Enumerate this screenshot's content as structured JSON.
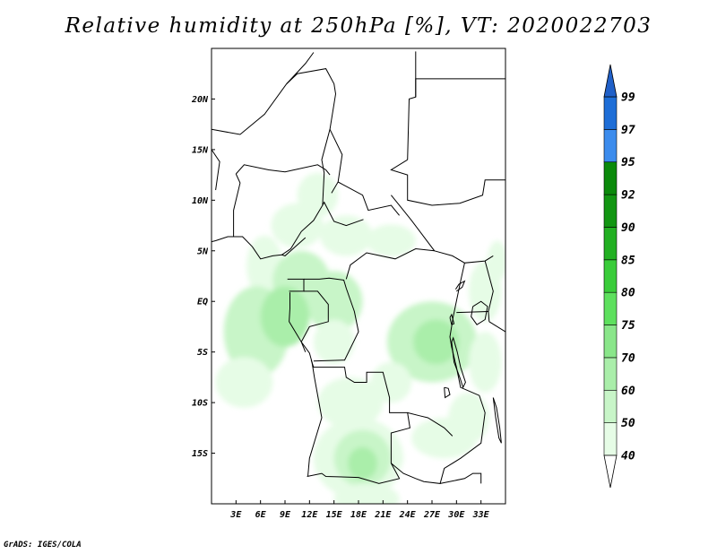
{
  "title": "Relative humidity at 250hPa [%], VT: 2020022703",
  "credit": "GrADS: IGES/COLA",
  "map": {
    "lon_range": [
      0,
      36
    ],
    "lat_range": [
      -20,
      25
    ],
    "lat_ticks": [
      {
        "value": 20,
        "label": "20N"
      },
      {
        "value": 15,
        "label": "15N"
      },
      {
        "value": 10,
        "label": "10N"
      },
      {
        "value": 5,
        "label": "5N"
      },
      {
        "value": 0,
        "label": "EQ"
      },
      {
        "value": -5,
        "label": "5S"
      },
      {
        "value": -10,
        "label": "10S"
      },
      {
        "value": -15,
        "label": "15S"
      }
    ],
    "lon_ticks": [
      {
        "value": 3,
        "label": "3E"
      },
      {
        "value": 6,
        "label": "6E"
      },
      {
        "value": 9,
        "label": "9E"
      },
      {
        "value": 12,
        "label": "12E"
      },
      {
        "value": 15,
        "label": "15E"
      },
      {
        "value": 18,
        "label": "18E"
      },
      {
        "value": 21,
        "label": "21E"
      },
      {
        "value": 24,
        "label": "24E"
      },
      {
        "value": 27,
        "label": "27E"
      },
      {
        "value": 30,
        "label": "30E"
      },
      {
        "value": 33,
        "label": "33E"
      }
    ],
    "humidity_field": [
      {
        "lon": 13,
        "lat": 10.5,
        "rx": 2.5,
        "ry": 2.2,
        "level": 50
      },
      {
        "lon": 10.5,
        "lat": 7.5,
        "rx": 3.2,
        "ry": 2.2,
        "level": 50
      },
      {
        "lon": 16.5,
        "lat": 6.5,
        "rx": 3.2,
        "ry": 2.0,
        "level": 50
      },
      {
        "lon": 22,
        "lat": 6,
        "rx": 3.0,
        "ry": 1.6,
        "level": 50
      },
      {
        "lon": 6.5,
        "lat": 3.5,
        "rx": 2.2,
        "ry": 3.0,
        "level": 50
      },
      {
        "lon": 11,
        "lat": 2,
        "rx": 3.5,
        "ry": 3.0,
        "level": 60
      },
      {
        "lon": 15,
        "lat": 0,
        "rx": 3.5,
        "ry": 3.0,
        "level": 60
      },
      {
        "lon": 5.5,
        "lat": -3,
        "rx": 4.0,
        "ry": 4.5,
        "level": 60
      },
      {
        "lon": 9,
        "lat": -1.5,
        "rx": 3.0,
        "ry": 3.0,
        "level": 70
      },
      {
        "lon": 4,
        "lat": -8,
        "rx": 3.5,
        "ry": 2.5,
        "level": 50
      },
      {
        "lon": 15,
        "lat": -4,
        "rx": 2.5,
        "ry": 2.2,
        "level": 50
      },
      {
        "lon": 27,
        "lat": -4,
        "rx": 5.5,
        "ry": 4.0,
        "level": 60
      },
      {
        "lon": 27.5,
        "lat": -4,
        "rx": 2.8,
        "ry": 2.2,
        "level": 70
      },
      {
        "lon": 22,
        "lat": -8,
        "rx": 2.5,
        "ry": 2.0,
        "level": 50
      },
      {
        "lon": 33.5,
        "lat": 1,
        "rx": 2.0,
        "ry": 3.0,
        "level": 50
      },
      {
        "lon": 33.5,
        "lat": -6,
        "rx": 2.0,
        "ry": 3.0,
        "level": 50
      },
      {
        "lon": 31.5,
        "lat": -11.5,
        "rx": 2.5,
        "ry": 2.5,
        "level": 50
      },
      {
        "lon": 28.5,
        "lat": -13.5,
        "rx": 4.0,
        "ry": 2.0,
        "level": 50
      },
      {
        "lon": 17,
        "lat": -10,
        "rx": 4.0,
        "ry": 2.5,
        "level": 50
      },
      {
        "lon": 18,
        "lat": -15.5,
        "rx": 5.5,
        "ry": 4.0,
        "level": 50
      },
      {
        "lon": 18.5,
        "lat": -15.5,
        "rx": 3.5,
        "ry": 2.8,
        "level": 60
      },
      {
        "lon": 18.5,
        "lat": -16,
        "rx": 1.8,
        "ry": 1.6,
        "level": 70
      },
      {
        "lon": 19,
        "lat": -19.5,
        "rx": 4.0,
        "ry": 1.5,
        "level": 50
      },
      {
        "lon": 2.5,
        "lat": -15,
        "rx": 0.8,
        "ry": 0.6,
        "level": 40
      },
      {
        "lon": 3.5,
        "lat": -17.5,
        "rx": 0.6,
        "ry": 0.6,
        "level": 40
      },
      {
        "lon": 25,
        "lat": -17,
        "rx": 2.0,
        "ry": 1.5,
        "level": 40
      },
      {
        "lon": 35,
        "lat": 4,
        "rx": 1.2,
        "ry": 2.0,
        "level": 50
      }
    ],
    "boundaries": [
      [
        [
          0,
          17.0
        ],
        [
          3.5,
          16.5
        ],
        [
          6.5,
          18.5
        ],
        [
          9.2,
          21.5
        ],
        [
          11.5,
          23.5
        ],
        [
          12.5,
          24.6
        ]
      ],
      [
        [
          9.2,
          21.5
        ],
        [
          10.5,
          22.5
        ],
        [
          14,
          23
        ],
        [
          15,
          21.5
        ],
        [
          15.2,
          20.5
        ],
        [
          14.5,
          17
        ],
        [
          13.5,
          14
        ],
        [
          13.8,
          12.7
        ],
        [
          13.6,
          9.5
        ],
        [
          12.5,
          8
        ],
        [
          11,
          6.9
        ],
        [
          9.7,
          5.2
        ],
        [
          8.6,
          4.6
        ]
      ],
      [
        [
          14.5,
          17
        ],
        [
          16,
          14.5
        ],
        [
          15.5,
          11.8
        ],
        [
          14.7,
          10.7
        ]
      ],
      [
        [
          15.5,
          11.8
        ],
        [
          18.5,
          10.5
        ],
        [
          19.2,
          9
        ],
        [
          22,
          9.5
        ],
        [
          23,
          8.5
        ]
      ],
      [
        [
          13.6,
          9.5
        ],
        [
          13.8,
          9.8
        ],
        [
          15,
          7.9
        ],
        [
          16.5,
          7.5
        ],
        [
          18.6,
          8.1
        ]
      ],
      [
        [
          22,
          10.5
        ],
        [
          23.5,
          9
        ],
        [
          24.5,
          8
        ],
        [
          27.3,
          5
        ],
        [
          25,
          5.2
        ],
        [
          22.5,
          4.2
        ],
        [
          19,
          4.8
        ],
        [
          17,
          3.6
        ],
        [
          16.5,
          2.2
        ]
      ],
      [
        [
          24,
          14
        ],
        [
          22,
          13
        ],
        [
          24,
          12.5
        ],
        [
          24,
          10
        ],
        [
          27,
          9.5
        ],
        [
          30.4,
          9.7
        ],
        [
          33.2,
          10.5
        ],
        [
          33.5,
          12
        ],
        [
          36,
          12
        ]
      ],
      [
        [
          27.3,
          5
        ],
        [
          29.5,
          4.5
        ],
        [
          31,
          3.8
        ],
        [
          33.5,
          4
        ],
        [
          34.5,
          4.5
        ]
      ],
      [
        [
          31,
          3.8
        ],
        [
          30.5,
          2
        ],
        [
          29.6,
          -1.5
        ],
        [
          29.2,
          -3.5
        ],
        [
          29.4,
          -4.5
        ],
        [
          30,
          -6.5
        ],
        [
          30.5,
          -8.5
        ],
        [
          32.8,
          -9.3
        ],
        [
          33.5,
          -11
        ],
        [
          33,
          -14
        ],
        [
          30.5,
          -15.5
        ],
        [
          28.5,
          -16.5
        ],
        [
          28,
          -18
        ],
        [
          26,
          -17.8
        ],
        [
          25,
          -17.5
        ],
        [
          23.5,
          -17
        ],
        [
          22,
          -16
        ]
      ],
      [
        [
          33.5,
          4
        ],
        [
          34.5,
          1
        ],
        [
          33.9,
          -1
        ],
        [
          34,
          -2
        ]
      ],
      [
        [
          30,
          -1.1
        ],
        [
          33.9,
          -1
        ]
      ],
      [
        [
          34,
          -2
        ],
        [
          36,
          -3
        ]
      ],
      [
        [
          9.3,
          2.2
        ],
        [
          11.3,
          2.2
        ],
        [
          11.3,
          1.0
        ],
        [
          9.5,
          1.0
        ]
      ],
      [
        [
          11.3,
          2.2
        ],
        [
          13.2,
          2.2
        ],
        [
          14.4,
          2.3
        ],
        [
          16.2,
          2.1
        ],
        [
          16.5,
          1.3
        ],
        [
          17.5,
          -1
        ],
        [
          18,
          -3
        ],
        [
          16.3,
          -5.8
        ],
        [
          12.5,
          -5.9
        ]
      ],
      [
        [
          11.3,
          1.0
        ],
        [
          13,
          1.0
        ],
        [
          14.3,
          -0.3
        ],
        [
          14.3,
          -2
        ],
        [
          12,
          -2.5
        ],
        [
          11,
          -4
        ],
        [
          11.5,
          -5
        ]
      ],
      [
        [
          12.2,
          -5.8
        ],
        [
          12.5,
          -6.5
        ],
        [
          16.3,
          -6.5
        ],
        [
          16.5,
          -7.5
        ],
        [
          17.5,
          -8
        ],
        [
          19,
          -8
        ],
        [
          19,
          -7
        ],
        [
          21,
          -7
        ],
        [
          21.8,
          -9.5
        ],
        [
          21.8,
          -11
        ],
        [
          24,
          -11
        ],
        [
          24.3,
          -12.5
        ],
        [
          22,
          -13
        ],
        [
          22,
          -16
        ],
        [
          23,
          -17.5
        ],
        [
          20.5,
          -18
        ],
        [
          18,
          -17.4
        ],
        [
          14,
          -17.3
        ],
        [
          13.5,
          -17
        ],
        [
          11.7,
          -17.3
        ]
      ],
      [
        [
          24,
          -11
        ],
        [
          25.5,
          -11.3
        ],
        [
          26.5,
          -11.5
        ],
        [
          28.5,
          -12.5
        ],
        [
          29.5,
          -13.3
        ]
      ],
      [
        [
          28,
          -18
        ],
        [
          31,
          -17.5
        ],
        [
          32,
          -17
        ],
        [
          33,
          -17
        ],
        [
          33,
          -18
        ]
      ],
      [
        [
          11.5,
          6.3
        ],
        [
          9,
          4.5
        ],
        [
          8.6,
          4.6
        ],
        [
          7.5,
          4.5
        ],
        [
          6,
          4.2
        ],
        [
          5,
          5.4
        ],
        [
          3.8,
          6.4
        ],
        [
          2,
          6.4
        ],
        [
          0.5,
          6
        ],
        [
          0,
          5.9
        ]
      ],
      [
        [
          2.7,
          6.4
        ],
        [
          2.7,
          9
        ],
        [
          3.5,
          11.7
        ],
        [
          3,
          12.6
        ]
      ],
      [
        [
          3,
          12.6
        ],
        [
          4,
          13.5
        ],
        [
          7,
          13
        ],
        [
          9,
          12.8
        ],
        [
          13,
          13.5
        ],
        [
          14,
          13
        ],
        [
          14.5,
          12.5
        ]
      ],
      [
        [
          0.5,
          11
        ],
        [
          1,
          13.8
        ],
        [
          0,
          15
        ]
      ],
      [
        [
          24,
          14
        ],
        [
          24.2,
          20
        ],
        [
          25,
          20.2
        ],
        [
          25,
          22
        ],
        [
          36,
          22
        ]
      ],
      [
        [
          25,
          20.2
        ],
        [
          25,
          24.7
        ]
      ],
      [
        [
          9.6,
          0.9
        ],
        [
          9.6,
          -0.7
        ],
        [
          9.5,
          -2
        ],
        [
          11,
          -4
        ],
        [
          12,
          -5.1
        ],
        [
          12.3,
          -6
        ],
        [
          12.6,
          -7.5
        ],
        [
          13.5,
          -11.5
        ],
        [
          12,
          -15.5
        ],
        [
          11.8,
          -17.3
        ]
      ]
    ],
    "lakes": [
      [
        [
          32,
          -0.5
        ],
        [
          33,
          0
        ],
        [
          33.8,
          -0.5
        ],
        [
          33.5,
          -1.8
        ],
        [
          32.5,
          -2.3
        ],
        [
          31.8,
          -1.5
        ],
        [
          32,
          -0.5
        ]
      ],
      [
        [
          29.4,
          -4
        ],
        [
          29.7,
          -6
        ],
        [
          30.4,
          -7.5
        ],
        [
          30.8,
          -8.5
        ],
        [
          31.1,
          -8
        ],
        [
          30.5,
          -6.5
        ],
        [
          30.1,
          -5
        ],
        [
          29.6,
          -3.6
        ],
        [
          29.4,
          -4
        ]
      ],
      [
        [
          34.5,
          -9.5
        ],
        [
          34.8,
          -11.5
        ],
        [
          35.2,
          -13.5
        ],
        [
          35.5,
          -14
        ],
        [
          35.3,
          -12.5
        ],
        [
          34.9,
          -10.5
        ],
        [
          34.5,
          -9.5
        ]
      ],
      [
        [
          29.9,
          1.2
        ],
        [
          30.3,
          1.7
        ],
        [
          31,
          2
        ],
        [
          30.7,
          1.4
        ],
        [
          30,
          1
        ]
      ],
      [
        [
          29.2,
          -1.6
        ],
        [
          29.4,
          -1.3
        ],
        [
          29.7,
          -2.2
        ],
        [
          29.4,
          -2.3
        ],
        [
          29.2,
          -1.6
        ]
      ],
      [
        [
          28.5,
          -8.5
        ],
        [
          29,
          -8.6
        ],
        [
          29.2,
          -9.2
        ],
        [
          28.6,
          -9.5
        ],
        [
          28.5,
          -8.5
        ]
      ]
    ]
  },
  "colorbar": {
    "levels": [
      {
        "label": "40",
        "color": "#ffffff"
      },
      {
        "label": "50",
        "color": "#e6fce6"
      },
      {
        "label": "60",
        "color": "#c8f5c8"
      },
      {
        "label": "70",
        "color": "#aaeeaa"
      },
      {
        "label": "75",
        "color": "#8ae68a"
      },
      {
        "label": "80",
        "color": "#5ee05e"
      },
      {
        "label": "85",
        "color": "#3acc3a"
      },
      {
        "label": "90",
        "color": "#22b022"
      },
      {
        "label": "92",
        "color": "#129612"
      },
      {
        "label": "95",
        "color": "#0b8a0b"
      },
      {
        "label": "97",
        "color": "#3c8ced"
      },
      {
        "label": "99",
        "color": "#1e6ed7"
      }
    ],
    "below_color": "#ffffff",
    "above_color": "#2060c8"
  }
}
